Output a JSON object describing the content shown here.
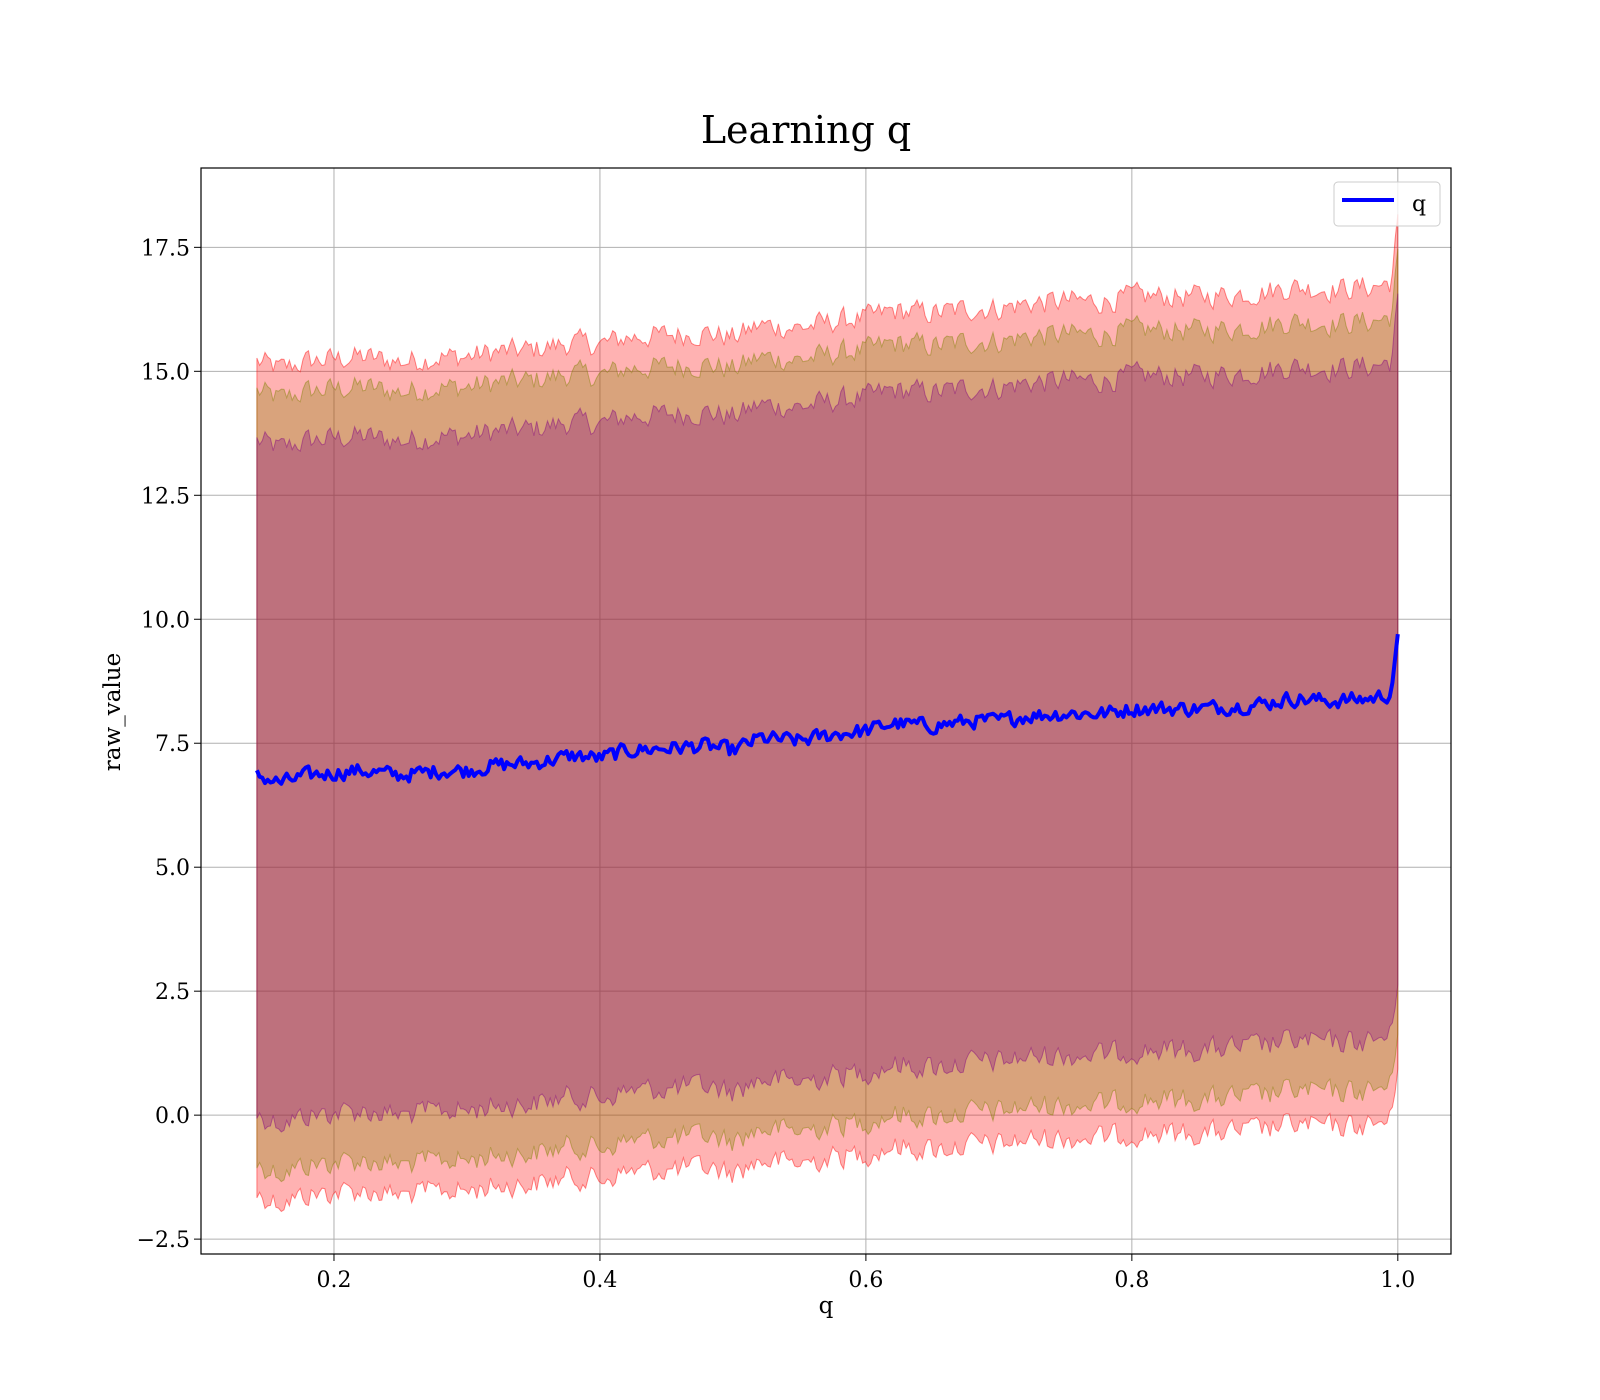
{
  "chart_data": {
    "type": "area",
    "title": "Learning q",
    "xlabel": "q",
    "ylabel": "raw_value",
    "xlim": [
      0.1,
      1.04
    ],
    "ylim": [
      -2.8,
      19.1
    ],
    "xticks": [
      0.2,
      0.4,
      0.6,
      0.8,
      1.0
    ],
    "xtick_labels": [
      "0.2",
      "0.4",
      "0.6",
      "0.8",
      "1.0"
    ],
    "yticks": [
      -2.5,
      0.0,
      2.5,
      5.0,
      7.5,
      10.0,
      12.5,
      15.0,
      17.5
    ],
    "ytick_labels": [
      "−2.5",
      "0.0",
      "2.5",
      "5.0",
      "7.5",
      "10.0",
      "12.5",
      "15.0",
      "17.5"
    ],
    "grid": true,
    "legend": {
      "position": "top-right",
      "entries": [
        {
          "label": "q",
          "color": "#0000ff"
        }
      ]
    },
    "x_range": [
      0.142,
      1.0
    ],
    "series": [
      {
        "name": "q",
        "kind": "line",
        "color": "#0000ff",
        "x": [
          0.142,
          0.16,
          0.18,
          0.2,
          0.22,
          0.25,
          0.28,
          0.3,
          0.32,
          0.35,
          0.38,
          0.4,
          0.42,
          0.45,
          0.48,
          0.5,
          0.52,
          0.55,
          0.58,
          0.6,
          0.62,
          0.65,
          0.68,
          0.7,
          0.72,
          0.75,
          0.78,
          0.8,
          0.82,
          0.85,
          0.88,
          0.9,
          0.92,
          0.95,
          0.98,
          0.995,
          1.0
        ],
        "y": [
          6.85,
          6.7,
          6.85,
          6.9,
          6.95,
          6.85,
          6.95,
          6.95,
          7.05,
          7.1,
          7.25,
          7.2,
          7.35,
          7.4,
          7.45,
          7.35,
          7.6,
          7.55,
          7.7,
          7.75,
          7.9,
          7.85,
          7.95,
          7.95,
          8.05,
          8.1,
          8.1,
          8.2,
          8.2,
          8.2,
          8.25,
          8.3,
          8.4,
          8.35,
          8.4,
          8.5,
          9.7
        ]
      },
      {
        "name": "",
        "kind": "band",
        "color": "#ff0000",
        "opacity": 0.3,
        "x": [
          0.142,
          1.0
        ],
        "lower": [
          -1.6,
          -0.1
        ],
        "upper": [
          15.2,
          16.8
        ]
      },
      {
        "name": "",
        "kind": "band",
        "color": "#808000",
        "opacity": 0.3,
        "x": [
          0.142,
          1.0
        ],
        "lower": [
          -1.0,
          0.6
        ],
        "upper": [
          14.6,
          16.1
        ]
      },
      {
        "name": "",
        "kind": "band",
        "color": "#800080",
        "opacity": 0.3,
        "x": [
          0.142,
          1.0
        ],
        "lower": [
          0.0,
          1.6
        ],
        "upper": [
          13.6,
          15.2
        ]
      }
    ]
  }
}
